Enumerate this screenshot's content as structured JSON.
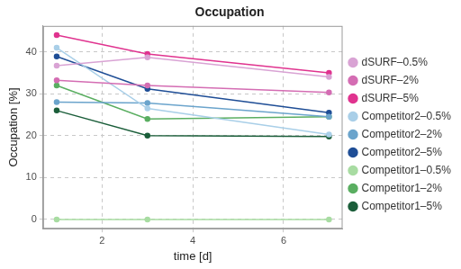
{
  "chart_data": {
    "type": "line",
    "title": "Occupation",
    "x_label": "time [d]",
    "y_label": "Occupation [%]",
    "x": [
      1,
      3,
      7
    ],
    "xlim": [
      0.7,
      7.3
    ],
    "xticks": [
      2,
      4,
      6
    ],
    "ylim": [
      -2.2,
      46.2
    ],
    "yticks": [
      0,
      10,
      20,
      30,
      40
    ],
    "grid": true,
    "legend": "right",
    "marker": "circle",
    "series": [
      {
        "name": "dSURF–0.5%",
        "color": "#d9a3d4",
        "values": [
          36.7,
          38.7,
          34.0
        ]
      },
      {
        "name": "dSURF–2%",
        "color": "#d46db3",
        "values": [
          33.2,
          32.0,
          30.3
        ]
      },
      {
        "name": "dSURF–5%",
        "color": "#e0338f",
        "values": [
          44.0,
          39.5,
          35.0
        ]
      },
      {
        "name": "Competitor2–0.5%",
        "color": "#a9cfe8",
        "values": [
          41.0,
          26.5,
          20.3
        ]
      },
      {
        "name": "Competitor2–2%",
        "color": "#6ba4cc",
        "values": [
          28.0,
          27.8,
          24.5
        ]
      },
      {
        "name": "Competitor2–5%",
        "color": "#1f4e96",
        "values": [
          38.9,
          31.2,
          25.5
        ]
      },
      {
        "name": "Competitor1–0.5%",
        "color": "#a8dca2",
        "values": [
          0,
          0,
          0
        ]
      },
      {
        "name": "Competitor1–2%",
        "color": "#5aae61",
        "values": [
          32.0,
          24.0,
          24.5
        ]
      },
      {
        "name": "Competitor1–5%",
        "color": "#1b5e3a",
        "values": [
          26.0,
          20.0,
          19.8
        ]
      }
    ]
  }
}
